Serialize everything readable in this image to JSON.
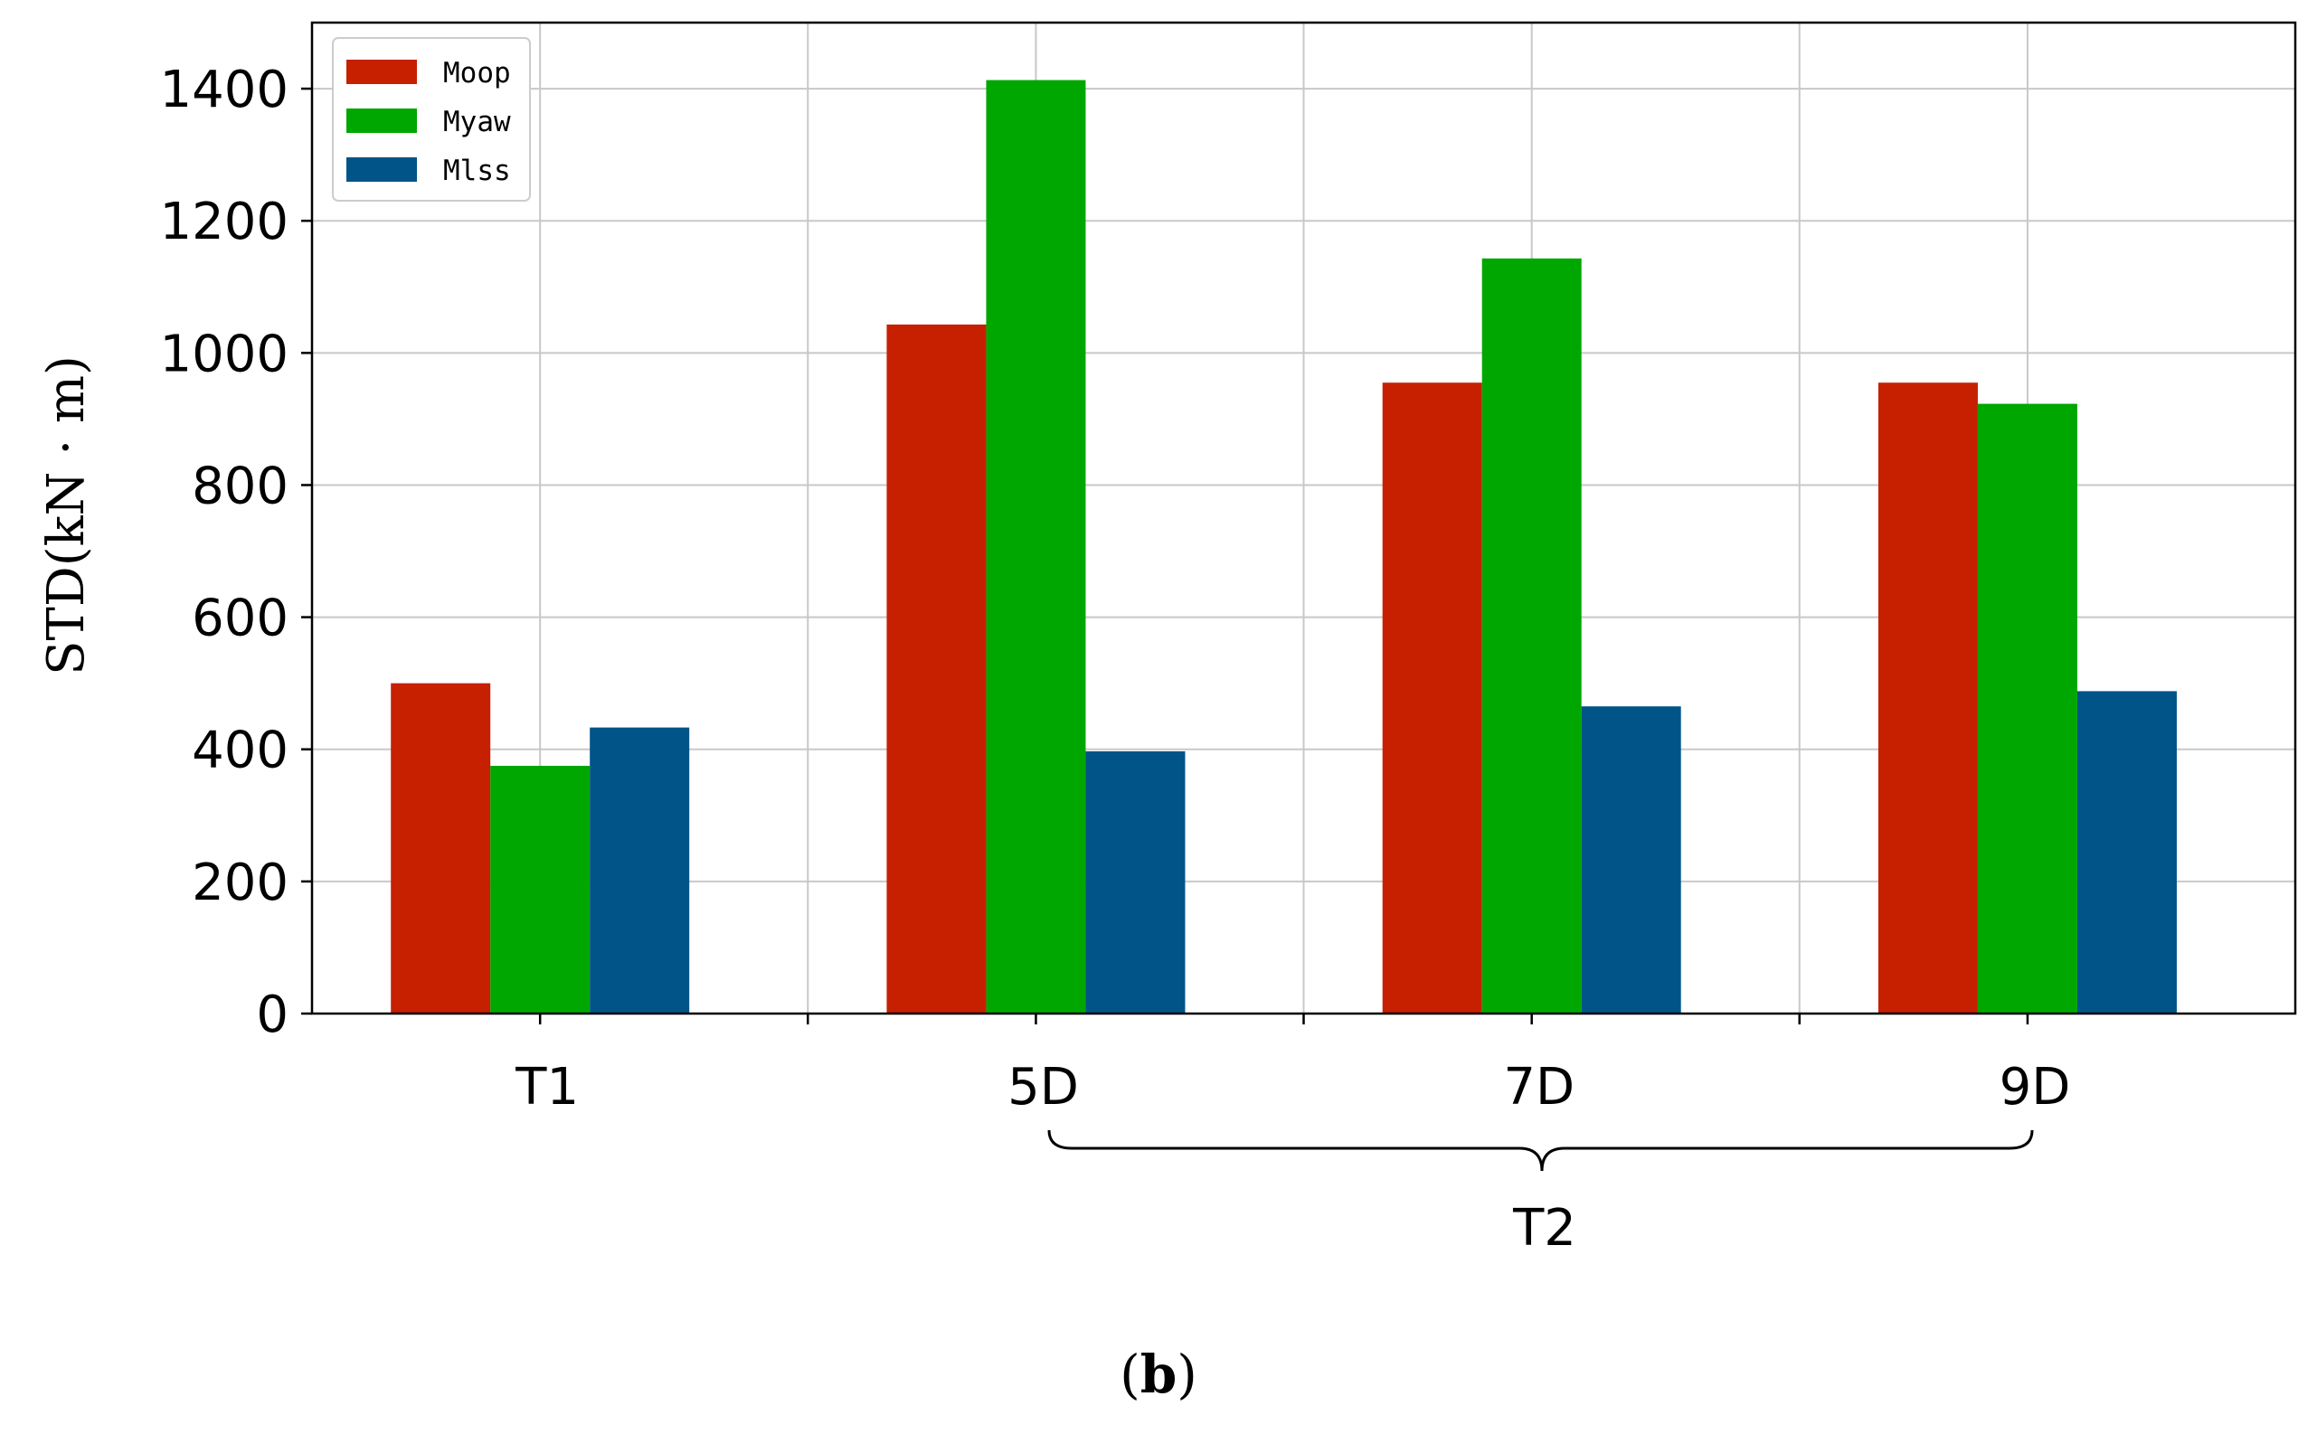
{
  "chart_data": {
    "type": "bar",
    "title": "",
    "xlabel": "",
    "ylabel": "STD(kN · m)",
    "ylim": [
      0,
      1500
    ],
    "yticks": [
      0,
      200,
      400,
      600,
      800,
      1000,
      1200,
      1400
    ],
    "ytick_labels": [
      "0",
      "200",
      "400",
      "600",
      "800",
      "1000",
      "1200",
      "1400"
    ],
    "grid": true,
    "legend_position": "top-left",
    "categories": [
      "T1",
      "5D",
      "7D",
      "9D"
    ],
    "series": [
      {
        "name": "Moop",
        "color": "#c62000",
        "values": [
          500,
          1043,
          955,
          955
        ]
      },
      {
        "name": "Myaw",
        "color": "#00a700",
        "values": [
          375,
          1413,
          1143,
          923
        ]
      },
      {
        "name": "Mlss",
        "color": "#005487",
        "values": [
          433,
          397,
          465,
          488
        ]
      }
    ],
    "group_annotation": {
      "label": "T2",
      "spans": [
        "5D",
        "7D",
        "9D"
      ]
    },
    "caption": {
      "open": "(",
      "letter": "b",
      "close": ")"
    }
  }
}
